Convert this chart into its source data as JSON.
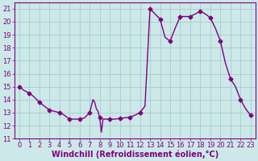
{
  "x": [
    0,
    0.5,
    1,
    1.5,
    2,
    2.5,
    3,
    3.5,
    4,
    4.5,
    5,
    5.5,
    6,
    6.5,
    7,
    7.17,
    7.33,
    7.5,
    7.67,
    7.83,
    8,
    8.17,
    8.33,
    8.5,
    8.67,
    8.83,
    9,
    9.5,
    10,
    10.5,
    11,
    11.5,
    12,
    12.5,
    13,
    13.5,
    14,
    14.5,
    15,
    15.5,
    16,
    16.5,
    17,
    17.5,
    18,
    18.5,
    19,
    19.5,
    20,
    20.5,
    21,
    21.5,
    22,
    22.5,
    23
  ],
  "y": [
    15.0,
    14.7,
    14.5,
    14.2,
    13.8,
    13.5,
    13.2,
    13.1,
    13.0,
    12.8,
    12.5,
    12.5,
    12.5,
    12.6,
    13.0,
    13.5,
    14.0,
    13.8,
    13.3,
    13.1,
    12.6,
    11.5,
    12.5,
    12.5,
    12.5,
    12.5,
    12.5,
    12.5,
    12.55,
    12.6,
    12.65,
    12.8,
    13.0,
    13.5,
    21.0,
    20.6,
    20.2,
    18.8,
    18.5,
    19.5,
    20.4,
    20.4,
    20.4,
    20.6,
    20.8,
    20.6,
    20.3,
    19.5,
    18.5,
    16.8,
    15.6,
    15.0,
    14.0,
    13.3,
    12.8
  ],
  "marked_x": [
    0,
    1,
    2,
    3,
    4,
    5,
    6,
    7,
    8,
    9,
    10,
    11,
    12,
    13,
    14,
    15,
    16,
    17,
    18,
    19,
    20,
    21,
    22,
    23
  ],
  "marked_y": [
    15.0,
    14.5,
    13.8,
    13.2,
    13.0,
    12.5,
    12.5,
    13.0,
    12.6,
    12.5,
    12.55,
    12.65,
    13.0,
    21.0,
    20.2,
    18.5,
    20.4,
    20.4,
    20.8,
    20.3,
    18.5,
    15.6,
    14.0,
    12.8
  ],
  "line_color": "#800080",
  "marker": "D",
  "marker_size": 2.5,
  "bg_color": "#cce8e8",
  "grid_color": "#a0c8c8",
  "xlabel": "Windchill (Refroidissement éolien,°C)",
  "ylim": [
    11,
    21.5
  ],
  "xlim": [
    -0.5,
    23.5
  ],
  "yticks": [
    11,
    12,
    13,
    14,
    15,
    16,
    17,
    18,
    19,
    20,
    21
  ],
  "xticks": [
    0,
    1,
    2,
    3,
    4,
    5,
    6,
    7,
    8,
    9,
    10,
    11,
    12,
    13,
    14,
    15,
    16,
    17,
    18,
    19,
    20,
    21,
    22,
    23
  ],
  "tick_fontsize": 6,
  "xlabel_fontsize": 7,
  "line_width": 1.0
}
